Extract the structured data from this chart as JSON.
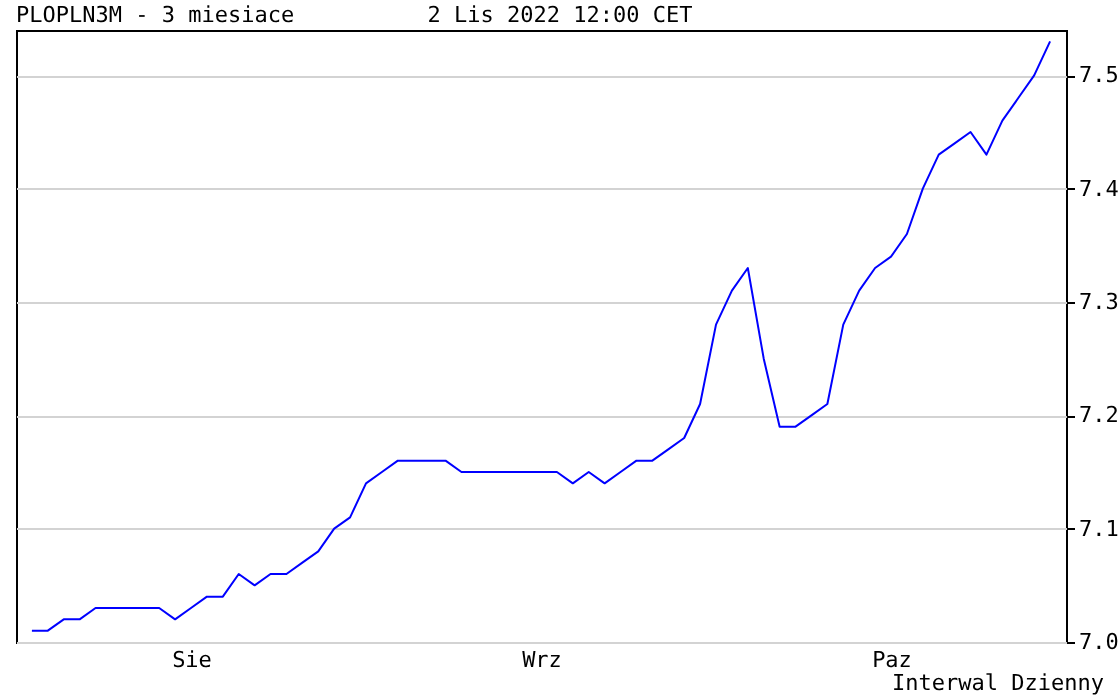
{
  "chart_data": {
    "type": "line",
    "title": "PLOPLN3M - 3 miesiace",
    "subtitle": "2 Lis 2022 12:00 CET",
    "annotations": [
      "Interwal Dzienny"
    ],
    "categories": [
      null,
      null,
      null,
      null,
      null,
      null,
      null,
      null,
      null,
      null,
      "Sie",
      null,
      null,
      null,
      null,
      null,
      null,
      null,
      null,
      null,
      null,
      null,
      null,
      null,
      null,
      null,
      null,
      null,
      null,
      null,
      null,
      null,
      "Wrz",
      null,
      null,
      null,
      null,
      null,
      null,
      null,
      null,
      null,
      null,
      null,
      null,
      null,
      null,
      null,
      null,
      null,
      null,
      null,
      null,
      null,
      "Paz",
      null,
      null,
      null,
      null,
      null,
      null,
      null,
      null,
      null,
      null
    ],
    "series": [
      {
        "color": "#0000ff",
        "values": [
          7.01,
          7.01,
          7.02,
          7.02,
          7.03,
          7.03,
          7.03,
          7.03,
          7.03,
          7.02,
          7.03,
          7.04,
          7.04,
          7.06,
          7.05,
          7.06,
          7.06,
          7.07,
          7.08,
          7.1,
          7.11,
          7.14,
          7.15,
          7.16,
          7.16,
          7.16,
          7.16,
          7.15,
          7.15,
          7.15,
          7.15,
          7.15,
          7.15,
          7.15,
          7.14,
          7.15,
          7.14,
          7.15,
          7.16,
          7.16,
          7.17,
          7.18,
          7.21,
          7.28,
          7.31,
          7.33,
          7.25,
          7.19,
          7.19,
          7.2,
          7.21,
          7.28,
          7.31,
          7.33,
          7.34,
          7.36,
          7.4,
          7.43,
          7.44,
          7.45,
          7.43,
          7.46,
          7.48,
          7.5,
          7.53
        ]
      }
    ],
    "ylim": [
      7.0,
      7.54
    ],
    "yticks": [
      {
        "value": 7.0,
        "label": "7.0"
      },
      7.1,
      7.2,
      7.3,
      7.4,
      7.5
    ],
    "grid": "y",
    "marker": "none",
    "line_style": "solid"
  }
}
